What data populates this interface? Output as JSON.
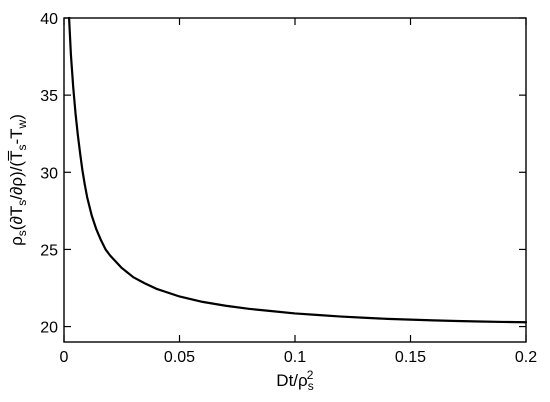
{
  "chart_data": {
    "type": "line",
    "title": "",
    "xlabel": {
      "parts": [
        {
          "text": "Dt/ρ",
          "style": "normal"
        },
        {
          "text": "s",
          "style": "sub"
        },
        {
          "text": "2",
          "style": "sup"
        }
      ]
    },
    "ylabel": {
      "parts": [
        {
          "text": "ρ",
          "style": "normal"
        },
        {
          "text": "s",
          "style": "sub"
        },
        {
          "text": "(∂T",
          "style": "normal"
        },
        {
          "text": "s",
          "style": "sub"
        },
        {
          "text": "/∂ρ)/(",
          "style": "normal"
        },
        {
          "text": "T̅",
          "style": "normal"
        },
        {
          "text": "s",
          "style": "sub"
        },
        {
          "text": "-T",
          "style": "normal"
        },
        {
          "text": "w",
          "style": "sub"
        },
        {
          "text": ")",
          "style": "normal"
        }
      ]
    },
    "xlim": [
      0,
      0.2
    ],
    "ylim": [
      19,
      40
    ],
    "x_ticks": [
      0,
      0.05,
      0.1,
      0.15,
      0.2
    ],
    "x_tick_labels": [
      "0",
      "0.05",
      "0.1",
      "0.15",
      "0.2"
    ],
    "y_ticks": [
      20,
      25,
      30,
      35,
      40
    ],
    "y_tick_labels": [
      "20",
      "25",
      "30",
      "35",
      "40"
    ],
    "grid": false,
    "series": [
      {
        "color": "#000000",
        "x": [
          0.0022,
          0.003,
          0.004,
          0.005,
          0.006,
          0.007,
          0.008,
          0.009,
          0.01,
          0.012,
          0.014,
          0.016,
          0.018,
          0.02,
          0.025,
          0.03,
          0.035,
          0.04,
          0.045,
          0.05,
          0.06,
          0.07,
          0.08,
          0.09,
          0.1,
          0.11,
          0.12,
          0.13,
          0.14,
          0.15,
          0.16,
          0.17,
          0.18,
          0.19,
          0.2
        ],
        "y": [
          40.0,
          37.6,
          35.5,
          33.8,
          32.4,
          31.2,
          30.1,
          29.2,
          28.4,
          27.2,
          26.3,
          25.6,
          25.0,
          24.6,
          23.8,
          23.2,
          22.8,
          22.45,
          22.2,
          21.95,
          21.6,
          21.35,
          21.15,
          21.0,
          20.85,
          20.75,
          20.65,
          20.57,
          20.5,
          20.45,
          20.4,
          20.36,
          20.33,
          20.3,
          20.28
        ]
      }
    ]
  }
}
